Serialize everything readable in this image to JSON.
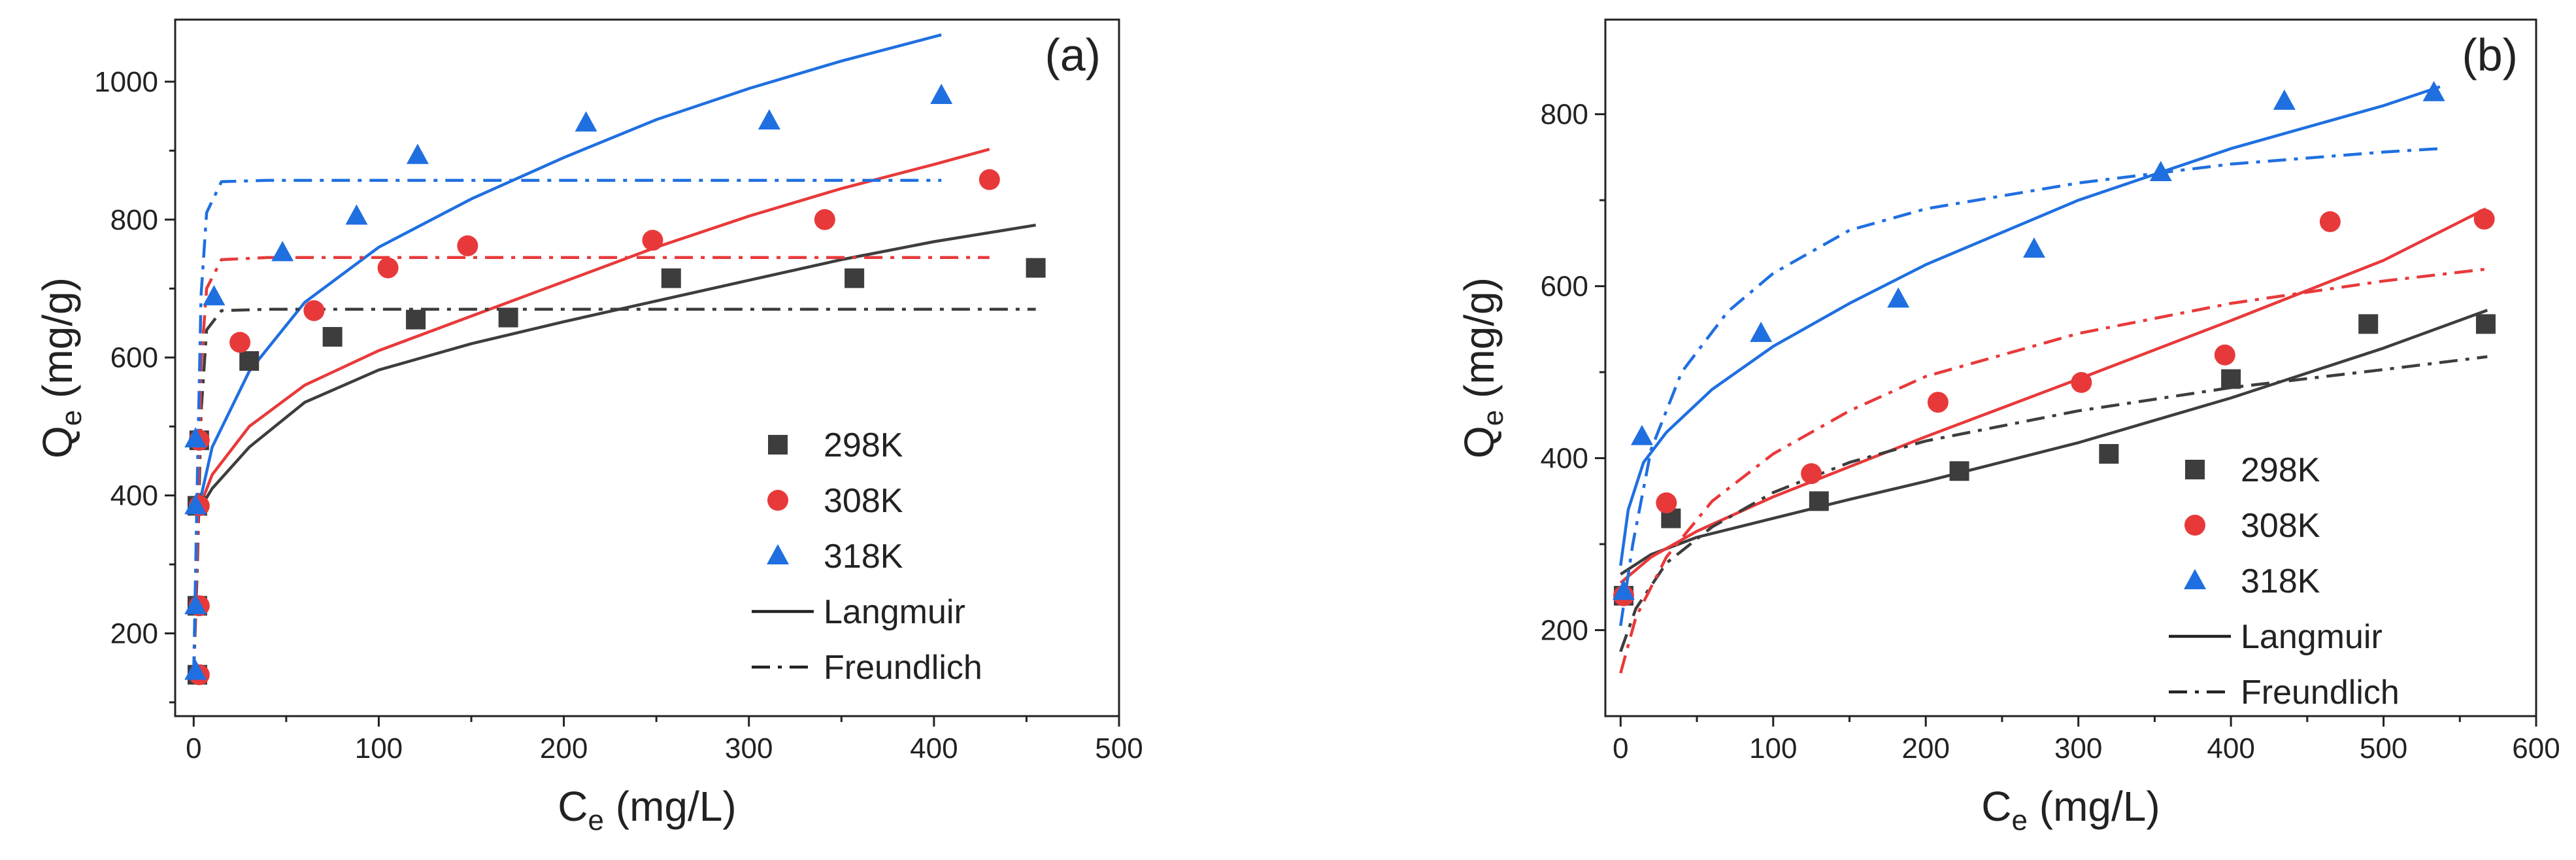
{
  "chart_data": [
    {
      "type": "scatter",
      "panel_label": "(a)",
      "xlabel": {
        "main": "C",
        "sub": "e",
        "unit": " (mg/L)"
      },
      "ylabel": {
        "main": "Q",
        "sub": "e",
        "unit": "  (mg/g)"
      },
      "xlim": [
        -10,
        500
      ],
      "ylim": [
        80,
        1090
      ],
      "xticks": [
        0,
        100,
        200,
        300,
        400,
        500
      ],
      "yticks": [
        200,
        400,
        600,
        800,
        1000
      ],
      "legend_position": "bottom-right",
      "series": [
        {
          "name": "298K",
          "marker": "square",
          "color": "#3d3d3d",
          "points": [
            [
              2,
              140
            ],
            [
              2,
              240
            ],
            [
              2,
              385
            ],
            [
              3,
              480
            ],
            [
              30,
              595
            ],
            [
              75,
              630
            ],
            [
              120,
              655
            ],
            [
              170,
              658
            ],
            [
              258,
              715
            ],
            [
              357,
              715
            ],
            [
              455,
              730
            ]
          ]
        },
        {
          "name": "308K",
          "marker": "circle",
          "color": "#e8393a",
          "points": [
            [
              3,
              140
            ],
            [
              3,
              240
            ],
            [
              3,
              385
            ],
            [
              3,
              480
            ],
            [
              25,
              622
            ],
            [
              65,
              668
            ],
            [
              105,
              730
            ],
            [
              148,
              762
            ],
            [
              248,
              770
            ],
            [
              341,
              800
            ],
            [
              430,
              858
            ]
          ]
        },
        {
          "name": "318K",
          "marker": "triangle",
          "color": "#1f6fe0",
          "points": [
            [
              1,
              145
            ],
            [
              1,
              240
            ],
            [
              1,
              385
            ],
            [
              1,
              482
            ],
            [
              11,
              688
            ],
            [
              48,
              752
            ],
            [
              88,
              805
            ],
            [
              121,
              893
            ],
            [
              212,
              940
            ],
            [
              311,
              943
            ],
            [
              404,
              980
            ]
          ]
        }
      ],
      "fits": [
        {
          "model": "Langmuir",
          "series": "298K",
          "style": "solid",
          "color": "#3d3d3d",
          "points": [
            [
              2,
              375
            ],
            [
              10,
              410
            ],
            [
              30,
              470
            ],
            [
              60,
              535
            ],
            [
              100,
              582
            ],
            [
              150,
              620
            ],
            [
              200,
              652
            ],
            [
              250,
              682
            ],
            [
              300,
              712
            ],
            [
              350,
              742
            ],
            [
              400,
              768
            ],
            [
              455,
              792
            ]
          ]
        },
        {
          "model": "Langmuir",
          "series": "308K",
          "style": "solid",
          "color": "#e8393a",
          "points": [
            [
              2,
              375
            ],
            [
              10,
              430
            ],
            [
              30,
              500
            ],
            [
              60,
              560
            ],
            [
              100,
              610
            ],
            [
              150,
              660
            ],
            [
              200,
              710
            ],
            [
              250,
              760
            ],
            [
              300,
              805
            ],
            [
              350,
              845
            ],
            [
              400,
              880
            ],
            [
              430,
              902
            ]
          ]
        },
        {
          "model": "Langmuir",
          "series": "318K",
          "style": "solid",
          "color": "#1f6fe0",
          "points": [
            [
              2,
              375
            ],
            [
              10,
              470
            ],
            [
              30,
              580
            ],
            [
              60,
              680
            ],
            [
              100,
              760
            ],
            [
              150,
              830
            ],
            [
              200,
              890
            ],
            [
              250,
              945
            ],
            [
              300,
              990
            ],
            [
              350,
              1030
            ],
            [
              404,
              1068
            ]
          ]
        },
        {
          "model": "Freundlich",
          "series": "298K",
          "style": "dashdot",
          "color": "#3d3d3d",
          "points": [
            [
              0,
              140
            ],
            [
              2,
              300
            ],
            [
              4,
              520
            ],
            [
              7,
              640
            ],
            [
              15,
              668
            ],
            [
              40,
              670
            ],
            [
              455,
              670
            ]
          ]
        },
        {
          "model": "Freundlich",
          "series": "308K",
          "style": "dashdot",
          "color": "#e8393a",
          "points": [
            [
              0,
              140
            ],
            [
              2,
              330
            ],
            [
              4,
              590
            ],
            [
              7,
              700
            ],
            [
              15,
              742
            ],
            [
              40,
              745
            ],
            [
              430,
              745
            ]
          ]
        },
        {
          "model": "Freundlich",
          "series": "318K",
          "style": "dashdot",
          "color": "#1f6fe0",
          "points": [
            [
              0,
              140
            ],
            [
              2,
              430
            ],
            [
              4,
              690
            ],
            [
              7,
              810
            ],
            [
              15,
              855
            ],
            [
              40,
              857
            ],
            [
              404,
              857
            ]
          ]
        }
      ],
      "legend": {
        "scatter": [
          "298K",
          "308K",
          "318K"
        ],
        "lines": [
          "Langmuir",
          "Freundlich"
        ]
      }
    },
    {
      "type": "scatter",
      "panel_label": "(b)",
      "xlabel": {
        "main": "C",
        "sub": "e",
        "unit": " (mg/L)"
      },
      "ylabel": {
        "main": "Q",
        "sub": "e",
        "unit": " (mg/g)"
      },
      "xlim": [
        -10,
        600
      ],
      "ylim": [
        100,
        910
      ],
      "xticks": [
        0,
        100,
        200,
        300,
        400,
        500,
        600
      ],
      "yticks": [
        200,
        400,
        600,
        800
      ],
      "legend_position": "bottom-right",
      "series": [
        {
          "name": "298K",
          "marker": "square",
          "color": "#3d3d3d",
          "points": [
            [
              2,
              240
            ],
            [
              33,
              330
            ],
            [
              130,
              350
            ],
            [
              222,
              385
            ],
            [
              320,
              405
            ],
            [
              400,
              492
            ],
            [
              490,
              556
            ],
            [
              567,
              556
            ]
          ]
        },
        {
          "name": "308K",
          "marker": "circle",
          "color": "#e8393a",
          "points": [
            [
              2,
              240
            ],
            [
              30,
              348
            ],
            [
              125,
              382
            ],
            [
              208,
              465
            ],
            [
              302,
              488
            ],
            [
              396,
              520
            ],
            [
              465,
              675
            ],
            [
              566,
              678
            ]
          ]
        },
        {
          "name": "318K",
          "marker": "triangle",
          "color": "#1f6fe0",
          "points": [
            [
              2,
              245
            ],
            [
              14,
              425
            ],
            [
              92,
              545
            ],
            [
              182,
              585
            ],
            [
              271,
              643
            ],
            [
              354,
              732
            ],
            [
              435,
              815
            ],
            [
              533,
              825
            ]
          ]
        }
      ],
      "fits": [
        {
          "model": "Langmuir",
          "series": "298K",
          "style": "solid",
          "color": "#3d3d3d",
          "points": [
            [
              0,
              265
            ],
            [
              20,
              288
            ],
            [
              50,
              308
            ],
            [
              100,
              330
            ],
            [
              150,
              352
            ],
            [
              200,
              373
            ],
            [
              300,
              418
            ],
            [
              400,
              470
            ],
            [
              500,
              528
            ],
            [
              568,
              572
            ]
          ]
        },
        {
          "model": "Langmuir",
          "series": "308K",
          "style": "solid",
          "color": "#e8393a",
          "points": [
            [
              0,
              255
            ],
            [
              20,
              285
            ],
            [
              50,
              315
            ],
            [
              100,
              355
            ],
            [
              150,
              390
            ],
            [
              200,
              425
            ],
            [
              300,
              492
            ],
            [
              400,
              560
            ],
            [
              500,
              630
            ],
            [
              567,
              690
            ]
          ]
        },
        {
          "model": "Langmuir",
          "series": "318K",
          "style": "solid",
          "color": "#1f6fe0",
          "points": [
            [
              0,
              275
            ],
            [
              5,
              340
            ],
            [
              15,
              395
            ],
            [
              30,
              430
            ],
            [
              60,
              480
            ],
            [
              100,
              530
            ],
            [
              150,
              580
            ],
            [
              200,
              625
            ],
            [
              300,
              700
            ],
            [
              400,
              760
            ],
            [
              500,
              810
            ],
            [
              537,
              832
            ]
          ]
        },
        {
          "model": "Freundlich",
          "series": "298K",
          "style": "dashdot",
          "color": "#3d3d3d",
          "points": [
            [
              0,
              175
            ],
            [
              10,
              225
            ],
            [
              30,
              278
            ],
            [
              60,
              320
            ],
            [
              100,
              360
            ],
            [
              150,
              395
            ],
            [
              200,
              420
            ],
            [
              300,
              455
            ],
            [
              400,
              482
            ],
            [
              500,
              503
            ],
            [
              568,
              518
            ]
          ]
        },
        {
          "model": "Freundlich",
          "series": "308K",
          "style": "dashdot",
          "color": "#e8393a",
          "points": [
            [
              0,
              150
            ],
            [
              10,
              215
            ],
            [
              30,
              285
            ],
            [
              60,
              350
            ],
            [
              100,
              405
            ],
            [
              150,
              455
            ],
            [
              200,
              495
            ],
            [
              300,
              545
            ],
            [
              400,
              580
            ],
            [
              500,
              606
            ],
            [
              568,
              620
            ]
          ]
        },
        {
          "model": "Freundlich",
          "series": "318K",
          "style": "dashdot",
          "color": "#1f6fe0",
          "points": [
            [
              0,
              205
            ],
            [
              8,
              300
            ],
            [
              20,
              410
            ],
            [
              40,
              500
            ],
            [
              70,
              570
            ],
            [
              100,
              615
            ],
            [
              150,
              665
            ],
            [
              200,
              690
            ],
            [
              300,
              720
            ],
            [
              400,
              742
            ],
            [
              500,
              756
            ],
            [
              537,
              760
            ]
          ]
        }
      ],
      "legend": {
        "scatter": [
          "298K",
          "308K",
          "318K"
        ],
        "lines": [
          "Langmuir",
          "Freundlich"
        ]
      }
    }
  ]
}
